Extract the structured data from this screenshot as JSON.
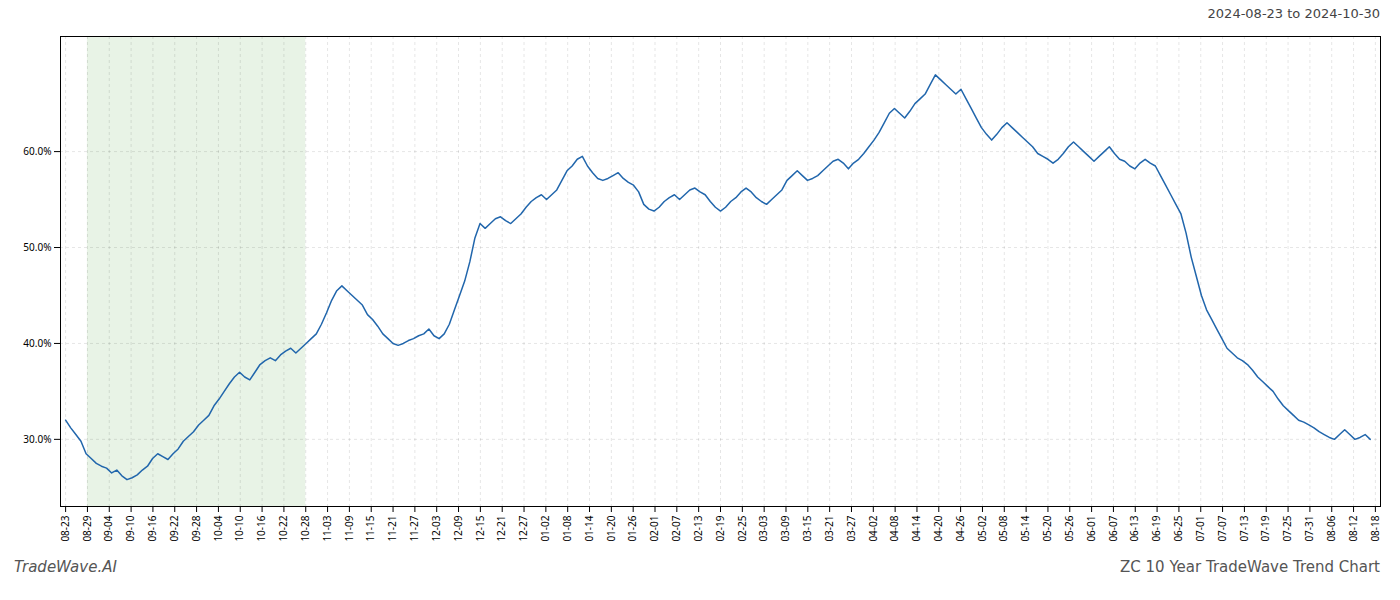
{
  "chart_data": {
    "type": "line",
    "title": "ZC 10 Year TradeWave Trend Chart",
    "subtitle": "2024-08-23 to 2024-10-30",
    "caption": "TradeWave.AI",
    "color": "#2166ac",
    "grid": true,
    "ylim": [
      23,
      72
    ],
    "yticks": [
      {
        "value": 30,
        "label": "30.0%"
      },
      {
        "value": 40,
        "label": "40.0%"
      },
      {
        "value": 50,
        "label": "50.0%"
      },
      {
        "value": 60,
        "label": "60.0%"
      }
    ],
    "xticks": [
      "08-23",
      "08-29",
      "09-04",
      "09-10",
      "09-16",
      "09-22",
      "09-28",
      "10-04",
      "10-10",
      "10-16",
      "10-22",
      "10-28",
      "11-03",
      "11-09",
      "11-15",
      "11-21",
      "11-27",
      "12-03",
      "12-09",
      "12-15",
      "12-21",
      "12-27",
      "01-02",
      "01-08",
      "01-14",
      "01-20",
      "01-26",
      "02-01",
      "02-07",
      "02-13",
      "02-19",
      "02-25",
      "03-03",
      "03-09",
      "03-15",
      "03-21",
      "03-27",
      "04-02",
      "04-08",
      "04-14",
      "04-20",
      "04-26",
      "05-02",
      "05-08",
      "05-14",
      "05-20",
      "05-26",
      "06-01",
      "06-07",
      "06-13",
      "06-19",
      "06-25",
      "07-01",
      "07-07",
      "07-13",
      "07-19",
      "07-25",
      "07-31",
      "08-06",
      "08-12",
      "08-18"
    ],
    "shaded_span": {
      "from": "08-29",
      "to": "10-28",
      "color": "#d6ead2"
    },
    "values": [
      32.0,
      31.2,
      30.5,
      29.8,
      28.5,
      28.0,
      27.5,
      27.2,
      27.0,
      26.5,
      26.8,
      26.2,
      25.8,
      26.0,
      26.3,
      26.8,
      27.2,
      28.0,
      28.5,
      28.2,
      27.9,
      28.5,
      29.0,
      29.8,
      30.3,
      30.8,
      31.5,
      32.0,
      32.5,
      33.5,
      34.2,
      35.0,
      35.8,
      36.5,
      37.0,
      36.5,
      36.2,
      37.0,
      37.8,
      38.2,
      38.5,
      38.2,
      38.8,
      39.2,
      39.5,
      39.0,
      39.5,
      40.0,
      40.5,
      41.0,
      42.0,
      43.2,
      44.5,
      45.5,
      46.0,
      45.5,
      45.0,
      44.5,
      44.0,
      43.0,
      42.5,
      41.8,
      41.0,
      40.5,
      40.0,
      39.8,
      40.0,
      40.3,
      40.5,
      40.8,
      41.0,
      41.5,
      40.8,
      40.5,
      41.0,
      42.0,
      43.5,
      45.0,
      46.5,
      48.5,
      51.0,
      52.5,
      52.0,
      52.5,
      53.0,
      53.2,
      52.8,
      52.5,
      53.0,
      53.5,
      54.2,
      54.8,
      55.2,
      55.5,
      55.0,
      55.5,
      56.0,
      57.0,
      58.0,
      58.5,
      59.2,
      59.5,
      58.5,
      57.8,
      57.2,
      57.0,
      57.2,
      57.5,
      57.8,
      57.2,
      56.8,
      56.5,
      55.8,
      54.5,
      54.0,
      53.8,
      54.2,
      54.8,
      55.2,
      55.5,
      55.0,
      55.5,
      56.0,
      56.2,
      55.8,
      55.5,
      54.8,
      54.2,
      53.8,
      54.2,
      54.8,
      55.2,
      55.8,
      56.2,
      55.8,
      55.2,
      54.8,
      54.5,
      55.0,
      55.5,
      56.0,
      57.0,
      57.5,
      58.0,
      57.5,
      57.0,
      57.2,
      57.5,
      58.0,
      58.5,
      59.0,
      59.2,
      58.8,
      58.2,
      58.8,
      59.2,
      59.8,
      60.5,
      61.2,
      62.0,
      63.0,
      64.0,
      64.5,
      64.0,
      63.5,
      64.2,
      65.0,
      65.5,
      66.0,
      67.0,
      68.0,
      67.5,
      67.0,
      66.5,
      66.0,
      66.5,
      65.5,
      64.5,
      63.5,
      62.5,
      61.8,
      61.2,
      61.8,
      62.5,
      63.0,
      62.5,
      62.0,
      61.5,
      61.0,
      60.5,
      59.8,
      59.5,
      59.2,
      58.8,
      59.2,
      59.8,
      60.5,
      61.0,
      60.5,
      60.0,
      59.5,
      59.0,
      59.5,
      60.0,
      60.5,
      59.8,
      59.2,
      59.0,
      58.5,
      58.2,
      58.8,
      59.2,
      58.8,
      58.5,
      57.5,
      56.5,
      55.5,
      54.5,
      53.5,
      51.5,
      49.0,
      47.0,
      45.0,
      43.5,
      42.5,
      41.5,
      40.5,
      39.5,
      39.0,
      38.5,
      38.2,
      37.8,
      37.2,
      36.5,
      36.0,
      35.5,
      35.0,
      34.2,
      33.5,
      33.0,
      32.5,
      32.0,
      31.8,
      31.5,
      31.2,
      30.8,
      30.5,
      30.2,
      30.0,
      30.5,
      31.0,
      30.5,
      30.0,
      30.2,
      30.5,
      30.0
    ]
  }
}
